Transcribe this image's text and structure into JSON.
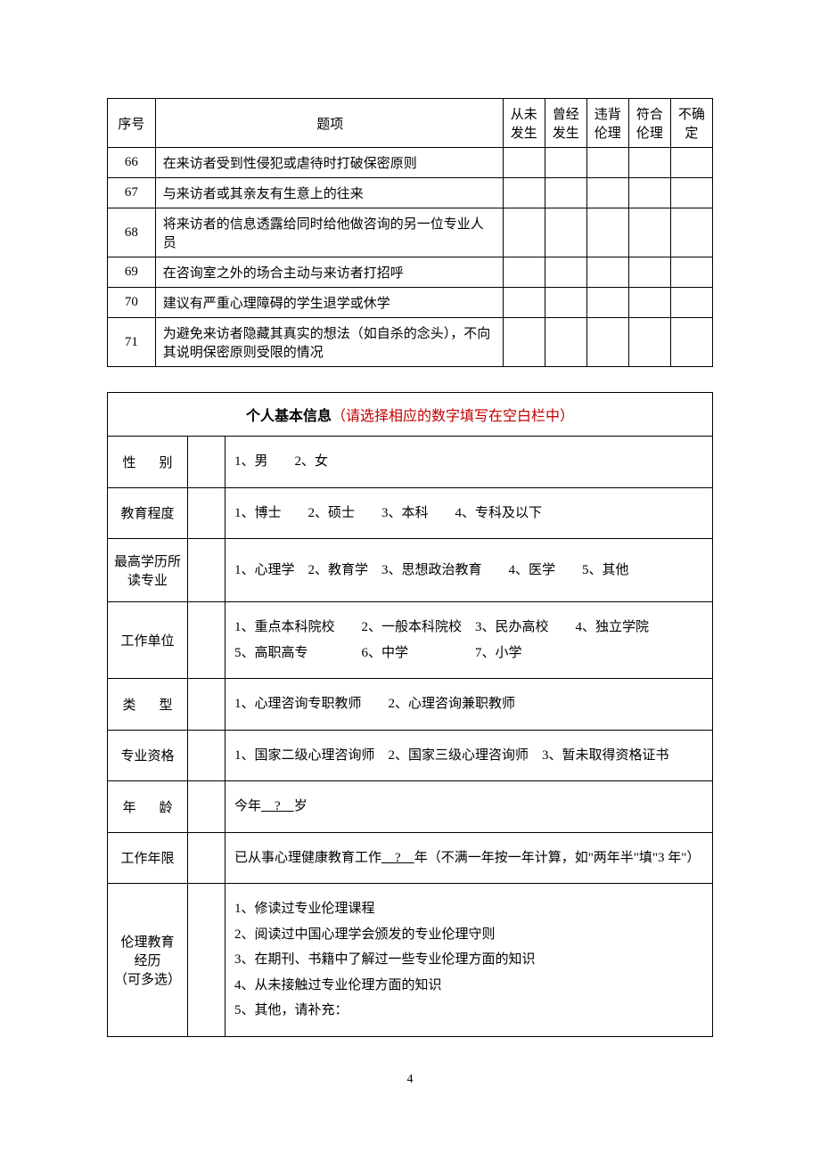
{
  "qTable": {
    "headers": {
      "num": "序号",
      "item": "题项",
      "c1_l1": "从未",
      "c1_l2": "发生",
      "c2_l1": "曾经",
      "c2_l2": "发生",
      "c3_l1": "违背",
      "c3_l2": "伦理",
      "c4_l1": "符合",
      "c4_l2": "伦理",
      "c5_l1": "不确",
      "c5_l2": "定"
    },
    "rows": [
      {
        "num": "66",
        "item": "在来访者受到性侵犯或虐待时打破保密原则"
      },
      {
        "num": "67",
        "item": "与来访者或其亲友有生意上的往来"
      },
      {
        "num": "68",
        "item": "将来访者的信息透露给同时给他做咨询的另一位专业人员"
      },
      {
        "num": "69",
        "item": "在咨询室之外的场合主动与来访者打招呼"
      },
      {
        "num": "70",
        "item": "建议有严重心理障碍的学生退学或休学"
      },
      {
        "num": "71",
        "item": "为避免来访者隐藏其真实的想法（如自杀的念头），不向其说明保密原则受限的情况"
      }
    ]
  },
  "infoTable": {
    "title_bold": "个人基本信息",
    "title_red": "（请选择相应的数字填写在空白栏中）",
    "rows": [
      {
        "label": "性别",
        "justify": true,
        "opts": "1、男　　2、女"
      },
      {
        "label": "教育程度",
        "justify": false,
        "opts": "1、博士　　2、硕士　　3、本科　　4、专科及以下"
      },
      {
        "label": "最高学历所读专业",
        "justify": false,
        "opts": "1、心理学　2、教育学　3、思想政治教育　　4、医学　　5、其他"
      },
      {
        "label": "工作单位",
        "justify": false,
        "opts": "1、重点本科院校　　2、一般本科院校　3、民办高校　　4、独立学院\n5、高职高专　　　　6、中学　　　　　7、小学"
      },
      {
        "label": "类型",
        "justify": true,
        "opts": "1、心理咨询专职教师　　2、心理咨询兼职教师"
      },
      {
        "label": "专业资格",
        "justify": false,
        "opts": "1、国家二级心理咨询师　2、国家三级心理咨询师　3、暂未取得资格证书"
      }
    ],
    "age": {
      "label": "年龄",
      "prefix": "今年",
      "mid": "　?　",
      "suffix": "岁"
    },
    "years": {
      "label": "工作年限",
      "prefix": "已从事心理健康教育工作",
      "mid": "　?　",
      "suffix": "年（不满一年按一年计算，如\"两年半\"填\"3 年\"）"
    },
    "ethics": {
      "label_l1": "伦理教育",
      "label_l2": "经历",
      "label_l3": "（可多选）",
      "o1": "1、修读过专业伦理课程",
      "o2": "2、阅读过中国心理学会颁发的专业伦理守则",
      "o3": "3、在期刊、书籍中了解过一些专业伦理方面的知识",
      "o4": "4、从未接触过专业伦理方面的知识",
      "o5": "5、其他，请补充："
    }
  },
  "pageNumber": "4"
}
